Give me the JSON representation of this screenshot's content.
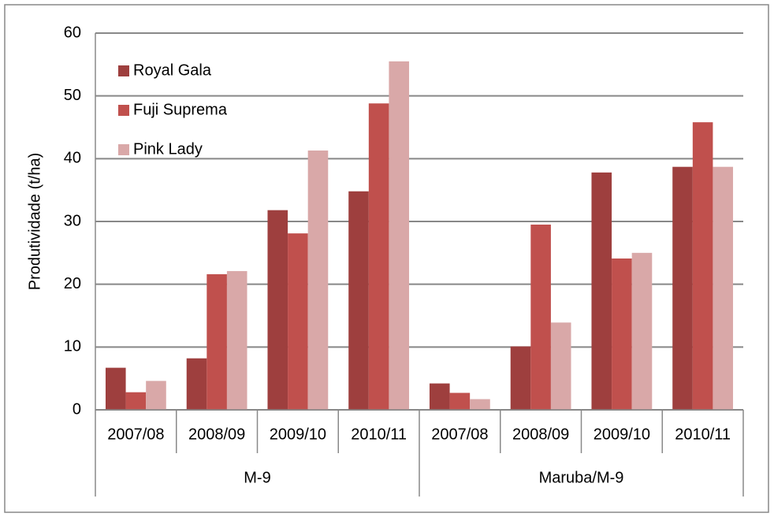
{
  "chart_data": {
    "type": "bar",
    "y_label": "Produtividade (t/ha)",
    "groups": [
      {
        "name": "M-9",
        "categories": [
          "2007/08",
          "2008/09",
          "2009/10",
          "2010/11"
        ]
      },
      {
        "name": "Maruba/M-9",
        "categories": [
          "2007/08",
          "2008/09",
          "2009/10",
          "2010/11"
        ]
      }
    ],
    "series": [
      {
        "name": "Royal Gala",
        "color": "#9e3f3e",
        "values": [
          6.7,
          8.2,
          31.8,
          34.8,
          4.2,
          10.1,
          37.8,
          38.7
        ]
      },
      {
        "name": "Fuji Suprema",
        "color": "#c0504d",
        "values": [
          2.8,
          21.6,
          28.1,
          48.8,
          2.7,
          29.5,
          24.1,
          45.8
        ]
      },
      {
        "name": "Pink Lady",
        "color": "#d9a8a8",
        "values": [
          4.6,
          22.1,
          41.3,
          55.5,
          1.7,
          13.9,
          25.0,
          38.7
        ]
      }
    ],
    "ylim": [
      0,
      60
    ],
    "yticks": [
      0,
      10,
      20,
      30,
      40,
      50,
      60
    ],
    "grid": true,
    "legend": "upper left"
  }
}
